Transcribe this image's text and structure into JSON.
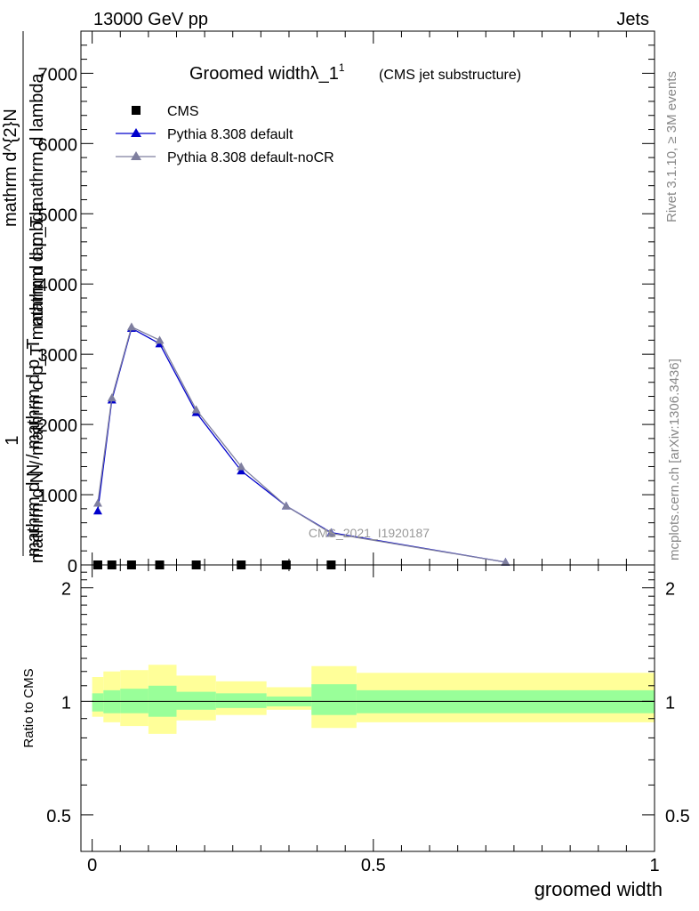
{
  "header": {
    "left": "13000 GeV pp",
    "right": "Jets"
  },
  "side": {
    "rivet": "Rivet 3.1.10, ≥ 3M events",
    "mcplots": "mcplots.cern.ch [arXiv:1306.3436]"
  },
  "chart_data": [
    {
      "type": "line",
      "title": "Groomed widthλ_1",
      "title_sup": "1",
      "subtitle": "(CMS jet substructure)",
      "watermark": "CMS_2021_I1920187",
      "ylabel_top": "1",
      "ylabel_num": "mathrm d^{2}N",
      "ylabel_den": "mathrm d p_T mathrm d lambda",
      "ylabel_bottom_left": "mathrm d N / mathrm d p_T",
      "ylabel_bottom_right": "mathrm d N / mathrm d p_T mathrm d lambda",
      "xlim": [
        -0.02,
        1.0
      ],
      "ylim": [
        0,
        7600
      ],
      "yticks": [
        0,
        1000,
        2000,
        3000,
        4000,
        5000,
        6000,
        7000
      ],
      "ytick_labels": [
        "0",
        "1000",
        "2000",
        "3000",
        "4000",
        "5000",
        "6000",
        "7000"
      ],
      "legend": [
        "CMS",
        "Pythia 8.308 default",
        "Pythia 8.308 default-noCR"
      ],
      "legend_position": "top-left",
      "colors": {
        "data": "#000000",
        "default": "#0000cc",
        "nocr": "#7f7f9f"
      },
      "series": [
        {
          "name": "CMS",
          "x": [
            0.01,
            0.035,
            0.07,
            0.12,
            0.185,
            0.265,
            0.345,
            0.425
          ],
          "y": [
            0,
            0,
            0,
            0,
            0,
            0,
            0,
            0
          ]
        },
        {
          "name": "Pythia 8.308 default",
          "x": [
            0.01,
            0.035,
            0.07,
            0.12,
            0.185,
            0.265,
            0.345,
            0.425,
            0.735
          ],
          "y": [
            770,
            2350,
            3370,
            3150,
            2170,
            1340,
            840,
            460,
            40
          ]
        },
        {
          "name": "Pythia 8.308 default-noCR",
          "x": [
            0.01,
            0.035,
            0.07,
            0.12,
            0.185,
            0.265,
            0.345,
            0.425,
            0.735
          ],
          "y": [
            880,
            2380,
            3390,
            3200,
            2210,
            1400,
            840,
            450,
            40
          ]
        }
      ]
    },
    {
      "type": "area",
      "ylabel": "Ratio to CMS",
      "xlabel": "groomed width",
      "xlim": [
        -0.02,
        1.0
      ],
      "ylim": [
        0.4,
        2.3
      ],
      "yticks": [
        0.5,
        1,
        2
      ],
      "ytick_labels": [
        "0.5",
        "1",
        "2"
      ],
      "xticks": [
        0,
        0.5,
        1
      ],
      "xtick_labels": [
        "0",
        "0.5",
        "1"
      ],
      "bins": [
        {
          "lo": 0.0,
          "hi": 0.02,
          "stat_lo": 0.94,
          "stat_hi": 1.05,
          "tot_lo": 0.91,
          "tot_hi": 1.16
        },
        {
          "lo": 0.02,
          "hi": 0.05,
          "stat_lo": 0.93,
          "stat_hi": 1.07,
          "tot_lo": 0.88,
          "tot_hi": 1.2
        },
        {
          "lo": 0.05,
          "hi": 0.1,
          "stat_lo": 0.93,
          "stat_hi": 1.08,
          "tot_lo": 0.86,
          "tot_hi": 1.21
        },
        {
          "lo": 0.1,
          "hi": 0.15,
          "stat_lo": 0.91,
          "stat_hi": 1.1,
          "tot_lo": 0.82,
          "tot_hi": 1.25
        },
        {
          "lo": 0.15,
          "hi": 0.22,
          "stat_lo": 0.95,
          "stat_hi": 1.06,
          "tot_lo": 0.89,
          "tot_hi": 1.17
        },
        {
          "lo": 0.22,
          "hi": 0.31,
          "stat_lo": 0.96,
          "stat_hi": 1.05,
          "tot_lo": 0.92,
          "tot_hi": 1.13
        },
        {
          "lo": 0.31,
          "hi": 0.39,
          "stat_lo": 0.97,
          "stat_hi": 1.03,
          "tot_lo": 0.95,
          "tot_hi": 1.09
        },
        {
          "lo": 0.39,
          "hi": 0.47,
          "stat_lo": 0.92,
          "stat_hi": 1.11,
          "tot_lo": 0.85,
          "tot_hi": 1.24
        },
        {
          "lo": 0.47,
          "hi": 1.0,
          "stat_lo": 0.93,
          "stat_hi": 1.07,
          "tot_lo": 0.88,
          "tot_hi": 1.19
        }
      ],
      "colors": {
        "stat": "#99ff99",
        "total": "#ffff99",
        "line": "#000000"
      }
    }
  ]
}
